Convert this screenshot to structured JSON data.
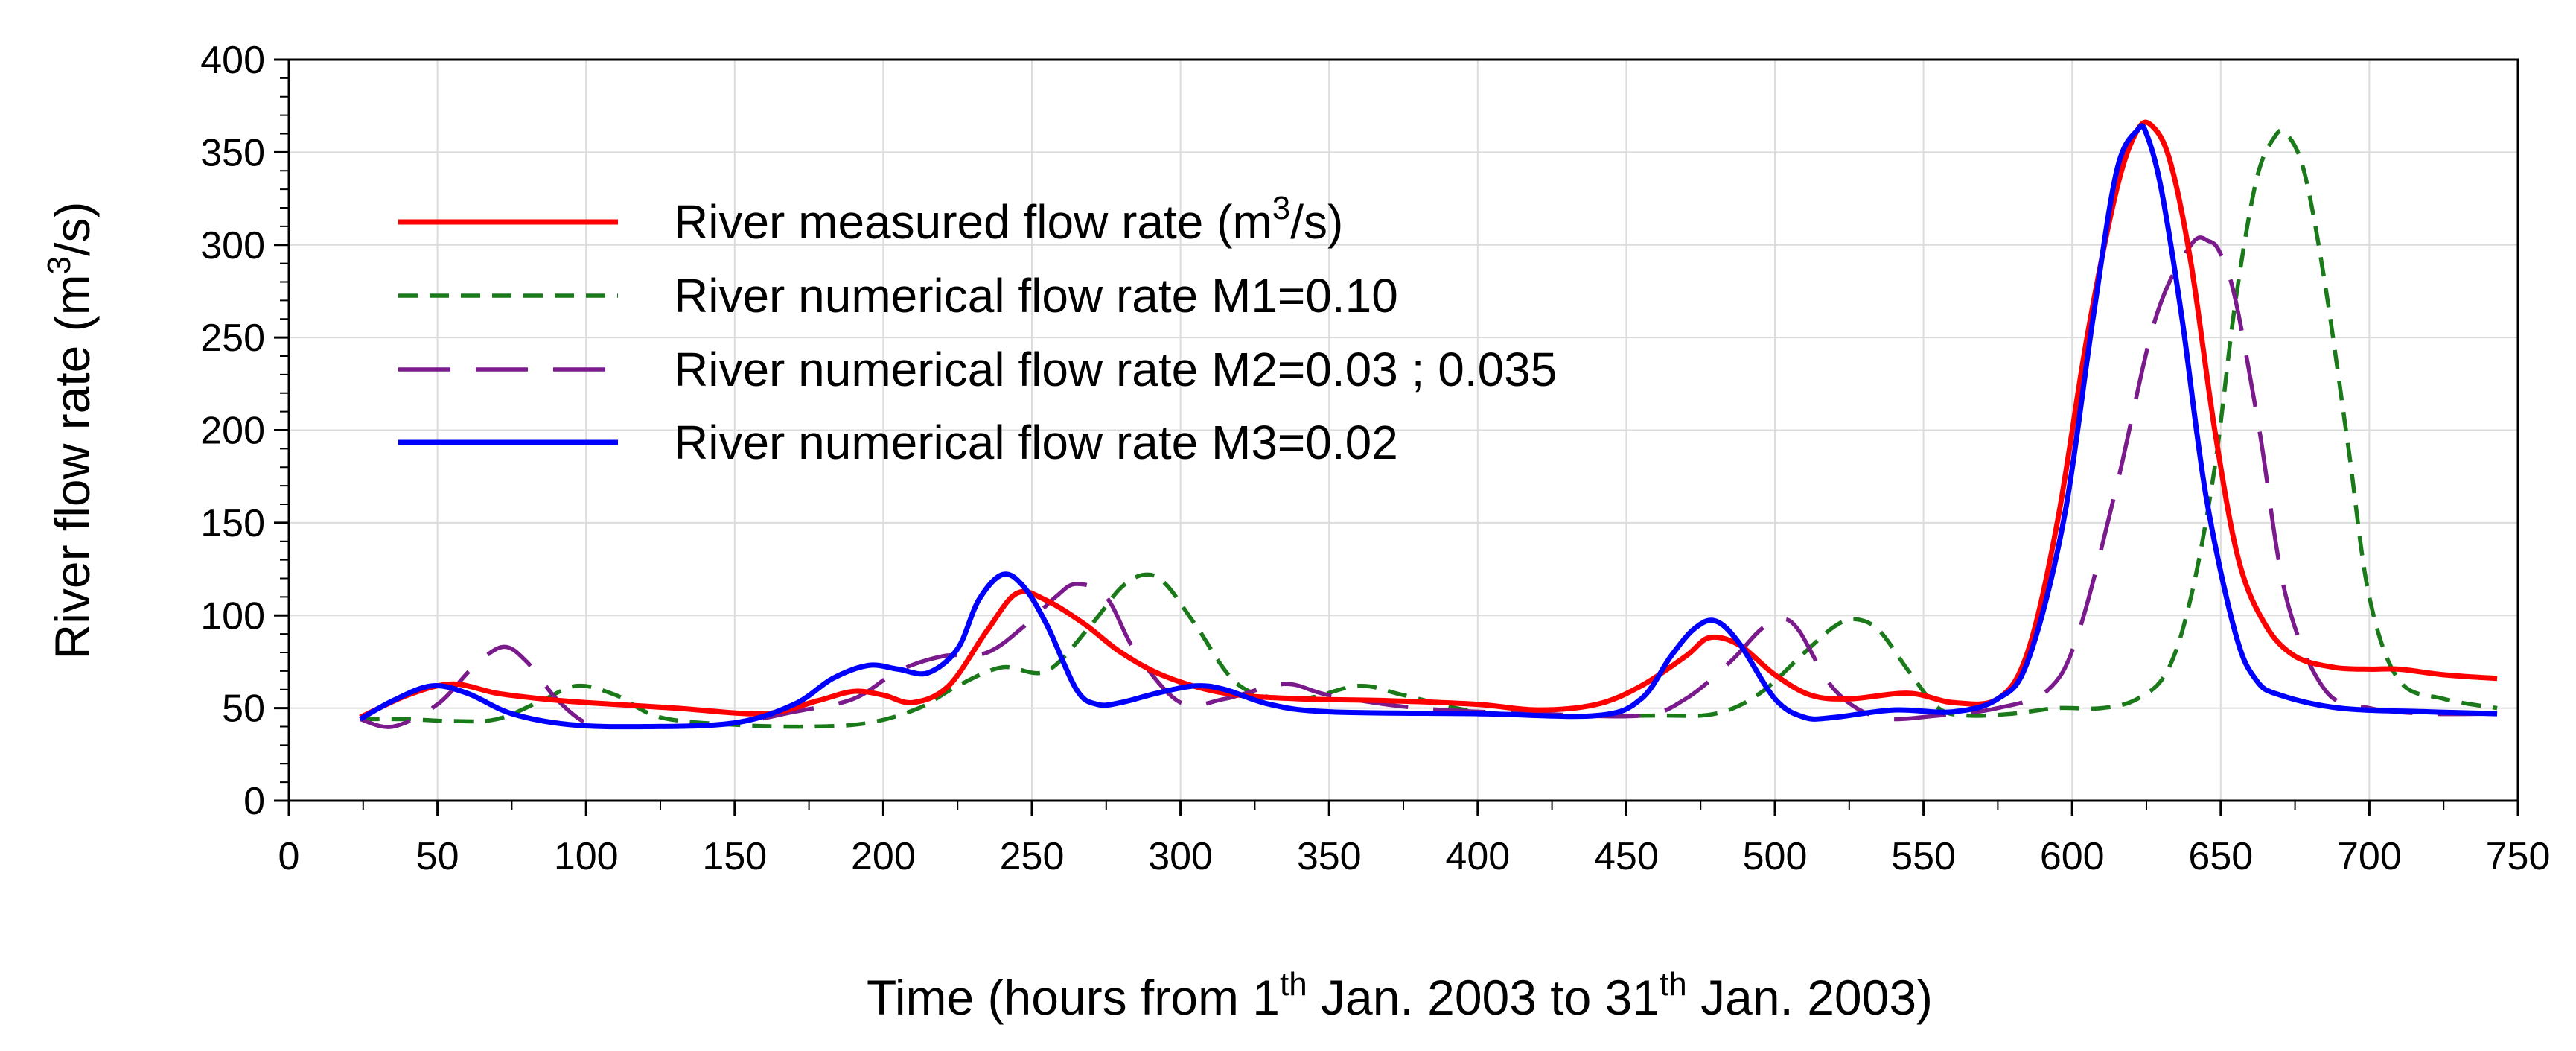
{
  "chart_data": {
    "type": "line",
    "title": "",
    "xlabel": {
      "prefix": "Time (hours from 1",
      "sup1": "th",
      "middle": " Jan. 2003 to 31",
      "sup2": "th",
      "suffix": " Jan. 2003)"
    },
    "ylabel": {
      "prefix": "River flow rate (m",
      "sup": "3",
      "suffix": "/s)"
    },
    "xlim": [
      0,
      750
    ],
    "ylim": [
      0,
      400
    ],
    "xticks": [
      0,
      50,
      100,
      150,
      200,
      250,
      300,
      350,
      400,
      450,
      500,
      550,
      600,
      650,
      700,
      750
    ],
    "yticks": [
      0,
      50,
      100,
      150,
      200,
      250,
      300,
      350,
      400
    ],
    "grid": true,
    "legend_position": "top-left",
    "series": [
      {
        "name": "River measured flow rate (m",
        "name_sup": "3",
        "name_suffix": "/s)",
        "color": "#ff0000",
        "style": "solid",
        "x": [
          24,
          40,
          55,
          70,
          85,
          100,
          130,
          160,
          178,
          190,
          200,
          210,
          222,
          235,
          245,
          255,
          268,
          280,
          295,
          315,
          340,
          370,
          400,
          420,
          440,
          455,
          470,
          478,
          488,
          500,
          512,
          525,
          545,
          560,
          575,
          585,
          595,
          605,
          615,
          622,
          627,
          633,
          640,
          648,
          656,
          665,
          675,
          688,
          700,
          710,
          725,
          743
        ],
        "y": [
          45,
          57,
          63,
          58,
          55,
          53,
          50,
          47,
          54,
          59,
          57,
          53,
          62,
          92,
          112,
          108,
          95,
          80,
          67,
          58,
          55,
          54,
          52,
          49,
          52,
          62,
          78,
          88,
          84,
          68,
          57,
          55,
          58,
          53,
          55,
          80,
          150,
          250,
          330,
          362,
          364,
          345,
          290,
          200,
          130,
          95,
          78,
          72,
          71,
          71,
          68,
          66
        ]
      },
      {
        "name": "River numerical flow rate M1=0.10",
        "color": "#1a7a1a",
        "style": "dashed",
        "x": [
          24,
          40,
          55,
          70,
          85,
          97,
          110,
          125,
          150,
          175,
          195,
          212,
          225,
          240,
          255,
          270,
          280,
          288,
          295,
          305,
          320,
          340,
          360,
          375,
          400,
          430,
          460,
          480,
          495,
          510,
          520,
          527,
          535,
          545,
          555,
          565,
          580,
          595,
          610,
          622,
          632,
          640,
          648,
          655,
          662,
          668,
          672,
          678,
          685,
          693,
          700,
          710,
          725,
          743
        ],
        "y": [
          44,
          44,
          43,
          44,
          54,
          62,
          57,
          45,
          41,
          40,
          42,
          50,
          62,
          72,
          70,
          95,
          115,
          122,
          117,
          95,
          62,
          55,
          62,
          57,
          48,
          46,
          46,
          47,
          58,
          80,
          94,
          98,
          92,
          70,
          50,
          46,
          47,
          50,
          50,
          55,
          70,
          110,
          180,
          270,
          335,
          358,
          360,
          340,
          280,
          190,
          110,
          65,
          55,
          50
        ]
      },
      {
        "name": "River numerical flow rate M2=0.03 ; 0.035",
        "color": "#7a1a8c",
        "style": "longdash",
        "x": [
          24,
          35,
          50,
          62,
          72,
          80,
          90,
          100,
          110,
          125,
          150,
          170,
          190,
          205,
          220,
          235,
          248,
          258,
          265,
          275,
          285,
          300,
          315,
          335,
          350,
          380,
          420,
          455,
          470,
          485,
          495,
          502,
          508,
          520,
          535,
          555,
          575,
          592,
          602,
          615,
          628,
          640,
          646,
          650,
          655,
          663,
          672,
          685,
          700,
          720,
          743
        ],
        "y": [
          44,
          40,
          52,
          72,
          83,
          75,
          55,
          42,
          40,
          40,
          42,
          48,
          55,
          70,
          78,
          80,
          95,
          110,
          117,
          110,
          80,
          53,
          55,
          63,
          57,
          50,
          47,
          46,
          55,
          75,
          92,
          98,
          92,
          60,
          45,
          46,
          50,
          60,
          90,
          170,
          260,
          300,
          302,
          295,
          270,
          200,
          110,
          60,
          50,
          47,
          47
        ]
      },
      {
        "name": "River numerical flow rate M3=0.02",
        "color": "#0000ff",
        "style": "solid",
        "x": [
          24,
          35,
          48,
          60,
          75,
          95,
          120,
          150,
          170,
          183,
          195,
          205,
          215,
          225,
          232,
          240,
          247,
          255,
          265,
          272,
          280,
          292,
          305,
          315,
          330,
          350,
          400,
          440,
          455,
          465,
          473,
          480,
          488,
          500,
          510,
          520,
          540,
          560,
          575,
          585,
          597,
          607,
          615,
          622,
          625,
          630,
          637,
          645,
          655,
          662,
          670,
          690,
          720,
          743
        ],
        "y": [
          44,
          54,
          62,
          58,
          47,
          41,
          40,
          42,
          52,
          66,
          73,
          71,
          69,
          82,
          108,
          122,
          116,
          95,
          60,
          52,
          53,
          58,
          62,
          60,
          52,
          48,
          47,
          46,
          55,
          78,
          93,
          97,
          85,
          55,
          45,
          45,
          49,
          48,
          55,
          75,
          150,
          260,
          340,
          362,
          360,
          330,
          260,
          165,
          90,
          65,
          57,
          50,
          48,
          47
        ]
      }
    ]
  }
}
